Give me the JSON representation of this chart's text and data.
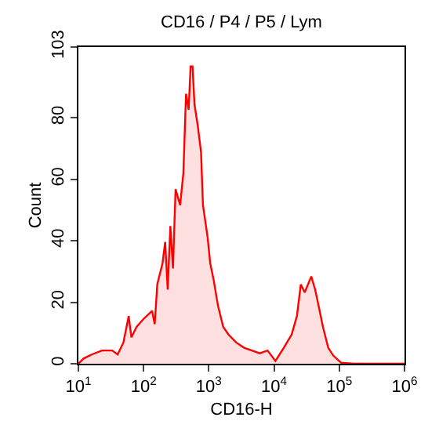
{
  "chart_data": {
    "type": "area",
    "title": "CD16 / P4 / P5 / Lym",
    "xlabel": "CD16-H",
    "ylabel": "Count",
    "log": "x",
    "xlim": [
      10,
      1000000
    ],
    "xticks": [
      {
        "value": 10,
        "label": "10$^{1}$"
      },
      {
        "value": 100,
        "label": "10$^{2}$"
      },
      {
        "value": 1000,
        "label": "10$^{3}$"
      },
      {
        "value": 10000,
        "label": "10$^{4}$"
      },
      {
        "value": 100000,
        "label": "10$^{5}$"
      },
      {
        "value": 1000000,
        "label": "10$^{6}$"
      }
    ],
    "ylim": [
      0,
      103
    ],
    "yticks": [
      0,
      20,
      40,
      60,
      80,
      103
    ],
    "legend": false,
    "marker": "none",
    "line_style": "solid",
    "series": [
      {
        "color": "#ff0000",
        "x": [
          10,
          12,
          16,
          23,
          33,
          40,
          49,
          59,
          65,
          78,
          100,
          135,
          148,
          162,
          195,
          214,
          234,
          257,
          282,
          309,
          363,
          407,
          447,
          490,
          525,
          562,
          603,
          676,
          759,
          813,
          955,
          1050,
          1180,
          1380,
          1660,
          2000,
          2630,
          3470,
          4570,
          6030,
          7940,
          10500,
          14100,
          18600,
          22400,
          25700,
          29500,
          37200,
          42700,
          49000,
          56200,
          67600,
          81300,
          107000,
          170000,
          1000000
        ],
        "values": [
          0,
          1.7,
          3,
          4.3,
          4.3,
          3,
          6.9,
          15.5,
          8.6,
          12,
          14.6,
          17.2,
          12.9,
          25.8,
          32.7,
          39.6,
          24.1,
          44.8,
          31,
          56.8,
          51.6,
          62,
          87.8,
          82.6,
          96.7,
          96.7,
          84.3,
          77.5,
          68.8,
          51.6,
          41.3,
          32.7,
          27.5,
          18.9,
          12,
          9.5,
          6.9,
          5.2,
          4.3,
          3.4,
          4.3,
          0.9,
          5.2,
          9.5,
          15.5,
          25.8,
          23.2,
          28.4,
          24.1,
          18.1,
          12,
          5.2,
          2.6,
          0.3,
          0,
          0
        ]
      }
    ]
  }
}
